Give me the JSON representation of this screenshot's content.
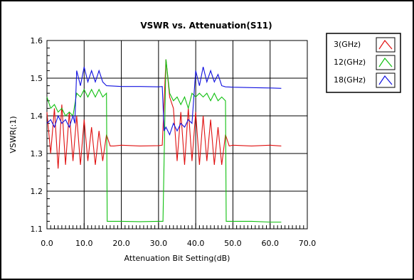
{
  "chart_data": {
    "type": "line",
    "title": "VSWR vs. Attenuation(S11)",
    "xlabel": "Attenuation Bit Setting(dB)",
    "ylabel": "VSWR(:1)",
    "xlim": [
      0,
      70
    ],
    "ylim": [
      1.1,
      1.6
    ],
    "xticks": [
      "0.0",
      "10.0",
      "20.0",
      "30.0",
      "40.0",
      "50.0",
      "60.0",
      "70.0"
    ],
    "yticks": [
      "1.1",
      "1.2",
      "1.3",
      "1.4",
      "1.5",
      "1.6"
    ],
    "grid": true,
    "legend_position": "top-right",
    "series": [
      {
        "name": "3(GHz)",
        "color": "#e01010",
        "x": [
          0,
          1,
          2,
          3,
          4,
          5,
          6,
          7,
          8,
          9,
          10,
          11,
          12,
          13,
          14,
          15,
          16,
          17,
          18,
          20,
          25,
          30,
          31,
          32,
          32.5,
          33,
          34,
          35,
          36,
          37,
          38,
          39,
          40,
          41,
          42,
          43,
          44,
          45,
          46,
          47,
          48,
          49,
          50,
          55,
          60,
          63
        ],
        "y": [
          1.41,
          1.3,
          1.42,
          1.26,
          1.43,
          1.27,
          1.41,
          1.28,
          1.4,
          1.27,
          1.39,
          1.28,
          1.37,
          1.27,
          1.36,
          1.28,
          1.35,
          1.32,
          1.32,
          1.322,
          1.32,
          1.321,
          1.322,
          1.55,
          1.5,
          1.45,
          1.42,
          1.28,
          1.41,
          1.27,
          1.42,
          1.28,
          1.41,
          1.27,
          1.4,
          1.28,
          1.39,
          1.27,
          1.37,
          1.27,
          1.35,
          1.32,
          1.322,
          1.32,
          1.322,
          1.32
        ]
      },
      {
        "name": "12(GHz)",
        "color": "#10c010",
        "x": [
          0,
          1,
          2,
          3,
          4,
          5,
          6,
          7,
          8,
          9,
          10,
          11,
          12,
          13,
          14,
          15,
          16,
          16.2,
          20,
          25,
          30,
          31,
          31.2,
          32,
          33,
          34,
          35,
          36,
          37,
          38,
          39,
          40,
          41,
          42,
          43,
          44,
          45,
          46,
          47,
          48,
          48.2,
          55,
          60,
          63
        ],
        "y": [
          1.45,
          1.42,
          1.43,
          1.41,
          1.42,
          1.4,
          1.41,
          1.4,
          1.46,
          1.45,
          1.47,
          1.45,
          1.47,
          1.45,
          1.47,
          1.45,
          1.46,
          1.12,
          1.12,
          1.119,
          1.12,
          1.12,
          1.12,
          1.55,
          1.46,
          1.44,
          1.45,
          1.43,
          1.45,
          1.42,
          1.46,
          1.45,
          1.46,
          1.45,
          1.46,
          1.44,
          1.46,
          1.44,
          1.45,
          1.44,
          1.12,
          1.12,
          1.118,
          1.118
        ]
      },
      {
        "name": "18(GHz)",
        "color": "#1010e0",
        "x": [
          0,
          1,
          2,
          3,
          4,
          5,
          6,
          7,
          7.5,
          8,
          9,
          10,
          11,
          12,
          13,
          14,
          15,
          16,
          20,
          25,
          30,
          31,
          31.5,
          32,
          33,
          34,
          35,
          36,
          37,
          38,
          39,
          40,
          41,
          42,
          43,
          44,
          45,
          46,
          47,
          48,
          50,
          55,
          60,
          63
        ],
        "y": [
          1.38,
          1.39,
          1.37,
          1.4,
          1.38,
          1.39,
          1.37,
          1.4,
          1.38,
          1.52,
          1.48,
          1.53,
          1.49,
          1.52,
          1.49,
          1.52,
          1.49,
          1.48,
          1.478,
          1.478,
          1.477,
          1.478,
          1.36,
          1.37,
          1.35,
          1.38,
          1.36,
          1.38,
          1.37,
          1.39,
          1.38,
          1.52,
          1.48,
          1.53,
          1.49,
          1.52,
          1.49,
          1.51,
          1.48,
          1.477,
          1.476,
          1.475,
          1.474,
          1.473
        ]
      }
    ]
  }
}
